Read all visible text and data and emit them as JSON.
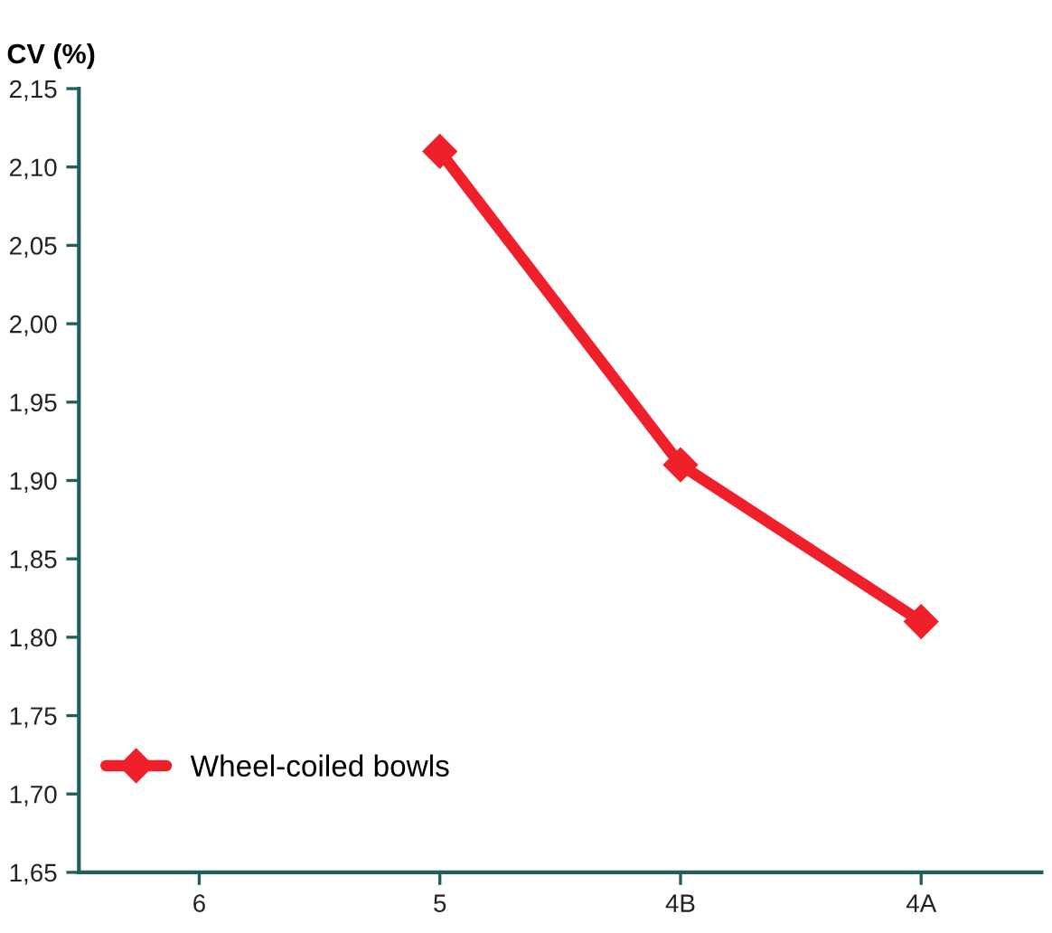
{
  "chart_data": {
    "type": "line",
    "ylabel": "CV (%)",
    "categories": [
      "6",
      "5",
      "4B",
      "4A"
    ],
    "series": [
      {
        "name": "Wheel-coiled bowls",
        "color": "#f0202a",
        "values": [
          null,
          2.11,
          1.91,
          1.81
        ]
      }
    ],
    "ylim": [
      1.65,
      2.15
    ],
    "yticks": [
      {
        "value": 1.65,
        "label": "1,65"
      },
      {
        "value": 1.7,
        "label": "1,70"
      },
      {
        "value": 1.75,
        "label": "1,75"
      },
      {
        "value": 1.8,
        "label": "1,80"
      },
      {
        "value": 1.85,
        "label": "1,85"
      },
      {
        "value": 1.9,
        "label": "1,90"
      },
      {
        "value": 1.95,
        "label": "1,95"
      },
      {
        "value": 2.0,
        "label": "2,00"
      },
      {
        "value": 2.05,
        "label": "2,05"
      },
      {
        "value": 2.1,
        "label": "2,10"
      },
      {
        "value": 2.15,
        "label": "2,15"
      }
    ],
    "marker": "diamond",
    "line_style": "solid",
    "legend": "bottom left",
    "grid": false
  }
}
